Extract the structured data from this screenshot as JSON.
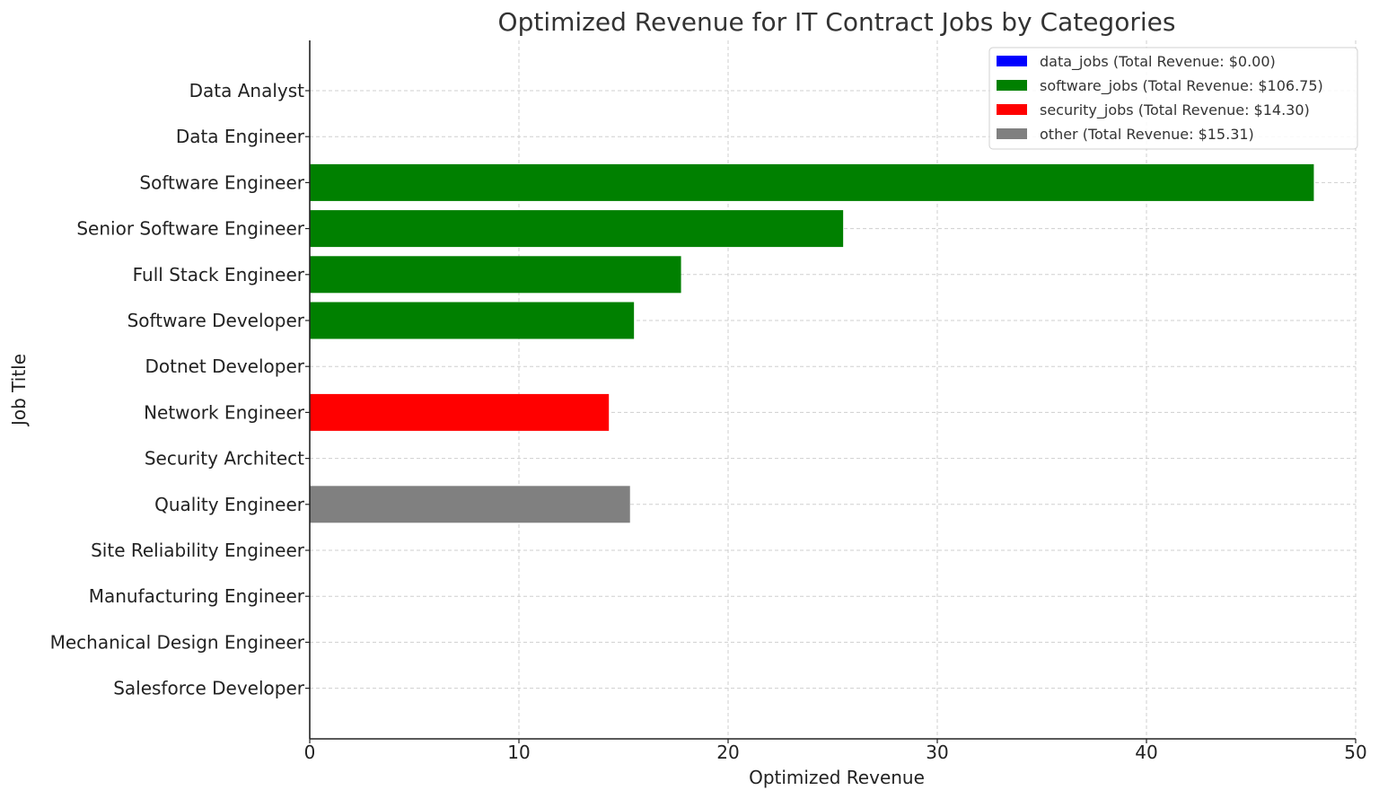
{
  "chart_data": {
    "type": "bar",
    "orientation": "horizontal",
    "title": "Optimized Revenue for IT Contract Jobs by Categories",
    "xlabel": "Optimized Revenue",
    "ylabel": "Job Title",
    "xlim": [
      0,
      50
    ],
    "xticks": [
      0,
      10,
      20,
      30,
      40,
      50
    ],
    "grid": true,
    "legend_position": "top-right",
    "categories": [
      "Data Analyst",
      "Data Engineer",
      "Software Engineer",
      "Senior Software Engineer",
      "Full Stack Engineer",
      "Software Developer",
      "Dotnet Developer",
      "Network Engineer",
      "Security Architect",
      "Quality Engineer",
      "Site Reliability Engineer",
      "Manufacturing Engineer",
      "Mechanical Design Engineer",
      "Salesforce Developer"
    ],
    "values": [
      0,
      0,
      48.0,
      25.5,
      17.75,
      15.5,
      0,
      14.3,
      0,
      15.31,
      0,
      0,
      0,
      0
    ],
    "bar_series": [
      "data_jobs",
      "data_jobs",
      "software_jobs",
      "software_jobs",
      "software_jobs",
      "software_jobs",
      "software_jobs",
      "security_jobs",
      "security_jobs",
      "other",
      "other",
      "other",
      "other",
      "other"
    ],
    "series": [
      {
        "key": "data_jobs",
        "label": "data_jobs (Total Revenue: $0.00)",
        "color": "#0000ff"
      },
      {
        "key": "software_jobs",
        "label": "software_jobs (Total Revenue: $106.75)",
        "color": "#008000"
      },
      {
        "key": "security_jobs",
        "label": "security_jobs (Total Revenue: $14.30)",
        "color": "#ff0000"
      },
      {
        "key": "other",
        "label": "other (Total Revenue: $15.31)",
        "color": "#808080"
      }
    ]
  }
}
